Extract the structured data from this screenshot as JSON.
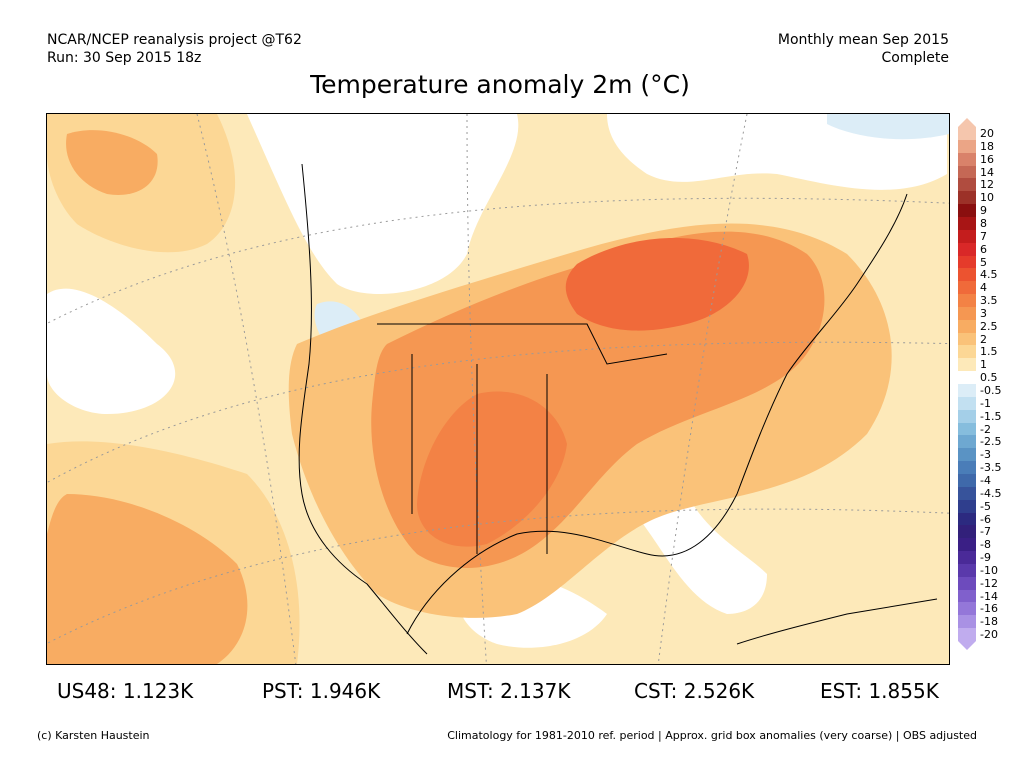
{
  "header": {
    "line1_left": "NCAR/NCEP reanalysis project @T62",
    "line2_left": "Run: 30 Sep 2015 18z",
    "line1_right": "Monthly mean Sep 2015",
    "line2_right": "Complete"
  },
  "title": "Temperature anomaly 2m (°C)",
  "colorbar": {
    "labels": [
      "20",
      "18",
      "16",
      "14",
      "12",
      "10",
      "9",
      "8",
      "7",
      "6",
      "5",
      "4.5",
      "4",
      "3.5",
      "3",
      "2.5",
      "2",
      "1.5",
      "1",
      "0.5",
      "-0.5",
      "-1",
      "-1.5",
      "-2",
      "-2.5",
      "-3",
      "-3.5",
      "-4",
      "-4.5",
      "-5",
      "-6",
      "-7",
      "-8",
      "-9",
      "-10",
      "-12",
      "-14",
      "-16",
      "-18",
      "-20"
    ],
    "colors": [
      "#f5c6ad",
      "#eba586",
      "#d9826a",
      "#c56855",
      "#b04c3f",
      "#9c3128",
      "#8a0f0f",
      "#a81515",
      "#c41d1d",
      "#d92828",
      "#e53b2b",
      "#ec5330",
      "#f06a3a",
      "#f38245",
      "#f59752",
      "#f8ac62",
      "#fac279",
      "#fcd795",
      "#fde9b9",
      "#ffffff",
      "#dcedf7",
      "#c2e0f1",
      "#a4cfe8",
      "#86bddd",
      "#6ea8d1",
      "#5a93c4",
      "#4a7db8",
      "#3f69aa",
      "#37539b",
      "#2f3e8d",
      "#2c2a80",
      "#32207a",
      "#3a1f85",
      "#4a2a98",
      "#5a39ab",
      "#6d4bbd",
      "#8060cc",
      "#9477d9",
      "#a991e4",
      "#c0acee"
    ]
  },
  "stats": [
    {
      "label": "US48:",
      "value": "1.123K"
    },
    {
      "label": "PST:",
      "value": "1.946K"
    },
    {
      "label": "MST:",
      "value": "2.137K"
    },
    {
      "label": "CST:",
      "value": "2.526K"
    },
    {
      "label": "EST:",
      "value": "1.855K"
    }
  ],
  "footer": {
    "left": "(c) Karsten Haustein",
    "right": "Climatology for 1981-2010 ref. period | Approx. grid box anomalies (very coarse) | OBS adjusted"
  }
}
